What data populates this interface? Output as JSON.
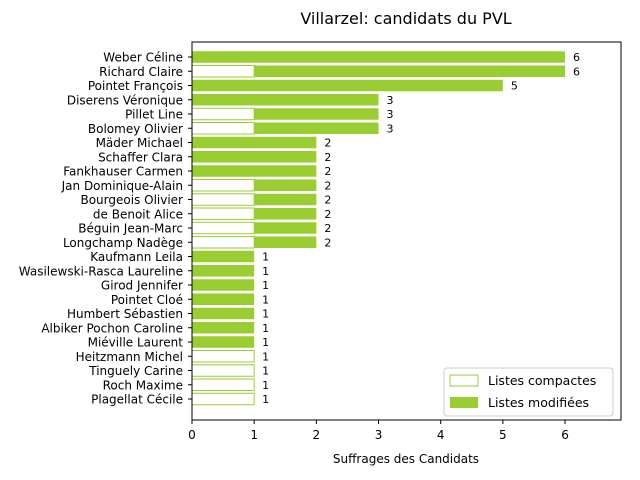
{
  "chart_data": {
    "type": "bar",
    "orientation": "horizontal",
    "stacked": true,
    "title": "Villarzel: candidats du PVL",
    "xlabel": "Suffrages des Candidats",
    "ylabel": "",
    "xlim": [
      0,
      6.9
    ],
    "xticks": [
      "0",
      "1",
      "2",
      "3",
      "4",
      "5",
      "6"
    ],
    "grid": false,
    "legend_position": "bottom-right",
    "categories": [
      "Weber Céline",
      "Richard Claire",
      "Pointet François",
      "Diserens Véronique",
      "Pillet Line",
      "Bolomey Olivier",
      "Mäder Michael",
      "Schaffer Clara",
      "Fankhauser Carmen",
      "Jan Dominique-Alain",
      "Bourgeois Olivier",
      "de Benoit Alice",
      "Béguin Jean-Marc",
      "Longchamp Nadège",
      "Kaufmann Leila",
      "Wasilewski-Rasca Laureline",
      "Girod Jennifer",
      "Pointet Cloé",
      "Humbert Sébastien",
      "Albiker Pochon Caroline",
      "Miéville Laurent",
      "Heitzmann Michel",
      "Tinguely Carine",
      "Roch Maxime",
      "Plagellat Cécile"
    ],
    "series": [
      {
        "name": "Listes compactes",
        "style": "outline",
        "color": "#9acd32",
        "values": [
          0,
          1,
          0,
          0,
          1,
          1,
          0,
          0,
          0,
          1,
          1,
          1,
          1,
          1,
          0,
          0,
          0,
          0,
          0,
          0,
          0,
          1,
          1,
          1,
          1
        ]
      },
      {
        "name": "Listes modifiées",
        "style": "filled",
        "color": "#9acd32",
        "values": [
          6,
          5,
          5,
          3,
          2,
          2,
          2,
          2,
          2,
          1,
          1,
          1,
          1,
          1,
          1,
          1,
          1,
          1,
          1,
          1,
          1,
          0,
          0,
          0,
          0
        ]
      }
    ],
    "totals": [
      6,
      6,
      5,
      3,
      3,
      3,
      2,
      2,
      2,
      2,
      2,
      2,
      2,
      2,
      1,
      1,
      1,
      1,
      1,
      1,
      1,
      1,
      1,
      1,
      1
    ]
  }
}
